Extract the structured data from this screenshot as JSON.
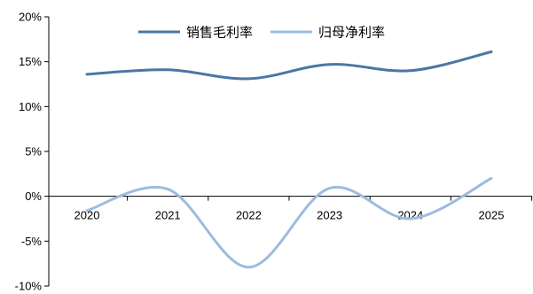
{
  "chart_data": {
    "type": "line",
    "title": "",
    "xlabel": "",
    "ylabel": "",
    "x": [
      "2020",
      "2021",
      "2022",
      "2023",
      "2024",
      "2025"
    ],
    "ylim": [
      -10,
      20
    ],
    "yticks": [
      -10,
      -5,
      0,
      5,
      10,
      15,
      20
    ],
    "ytick_labels": [
      "-10%",
      "-5%",
      "0%",
      "5%",
      "10%",
      "15%",
      "20%"
    ],
    "grid": false,
    "smooth": true,
    "legend_position": "top-center",
    "series": [
      {
        "name": "销售毛利率",
        "color": "#4a76a6",
        "values": [
          13.6,
          14.1,
          13.1,
          14.7,
          14.0,
          16.1
        ]
      },
      {
        "name": "归母净利率",
        "color": "#9dbbe0",
        "values": [
          -1.6,
          0.8,
          -7.9,
          0.9,
          -2.5,
          2.0
        ]
      }
    ]
  }
}
